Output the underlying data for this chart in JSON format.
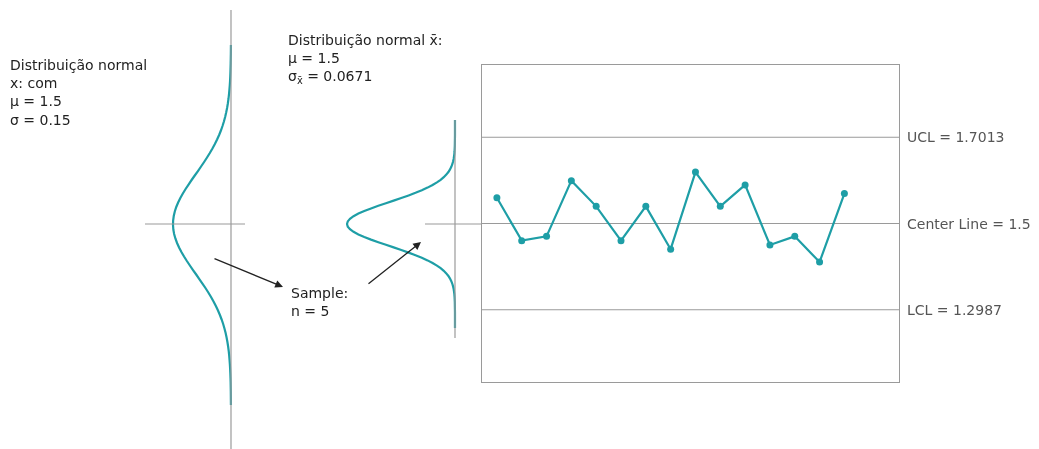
{
  "chart_data": {
    "type": "line",
    "categories": [
      null,
      null,
      null,
      null,
      null,
      null,
      null,
      null,
      null,
      null,
      null,
      null,
      null,
      null,
      null
    ],
    "series": [
      {
        "color": "#1e9ea6",
        "values": [
          1.56,
          1.46,
          1.47,
          1.6,
          1.54,
          1.46,
          1.54,
          1.44,
          1.62,
          1.54,
          1.59,
          1.45,
          1.47,
          1.41,
          1.57
        ]
      }
    ],
    "ylim": [
      1.13,
      1.87
    ],
    "marker": "circle",
    "line_style": "solid",
    "ref_lines": [
      {
        "axis": "y",
        "value": 1.7013,
        "label": "UCL = 1.7013",
        "color": "#9a9a9a"
      },
      {
        "axis": "y",
        "value": 1.5,
        "label": "Center Line = 1.5",
        "color": "#9a9a9a"
      },
      {
        "axis": "y",
        "value": 1.2987,
        "label": "LCL = 1.2987",
        "color": "#9a9a9a"
      }
    ],
    "annotations": [
      "Distribuição normal\nx: com\nμ = 1.5\nσ = 0.15",
      "Distribuição normal x̄:\nμ = 1.5\nσ$_{x̄}$ = 0.0671",
      "Sample:\nn = 5"
    ]
  }
}
